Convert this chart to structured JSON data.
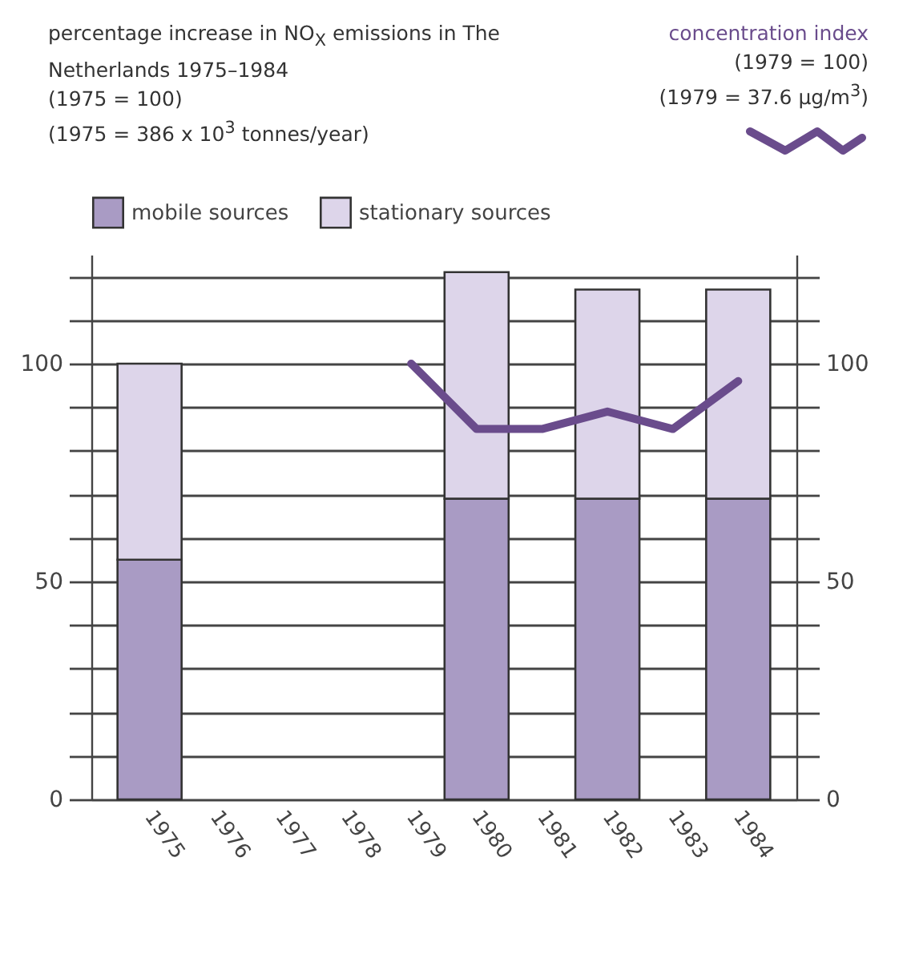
{
  "chart_data": {
    "type": "bar",
    "title": "percentage increase in NO$_{X}$ emissions in The Netherlands 1975–1984",
    "subtitle": "(1975 = 100)",
    "annotations": [
      "(1975 = 386 x 10$^{3}$ tonnes/year)",
      "(1979 = 100)",
      "(1979 = 37.6 µg/m$^{3}$)"
    ],
    "categories": [
      "1975",
      "1976",
      "1977",
      "1978",
      "1979",
      "1980",
      "1981",
      "1982",
      "1983",
      "1984"
    ],
    "stacked": true,
    "series": [
      {
        "name": "mobile sources",
        "color": "#a99bc4",
        "values": [
          55,
          null,
          null,
          null,
          null,
          69,
          null,
          69,
          null,
          69
        ]
      },
      {
        "name": "stationary sources",
        "color": "#ddd5ea",
        "values": [
          45,
          null,
          null,
          null,
          null,
          52,
          null,
          48,
          null,
          48
        ]
      },
      {
        "name": "concentration index",
        "type": "line",
        "axis": "y2",
        "color": "#6a4c8c",
        "values": [
          null,
          null,
          null,
          null,
          100,
          85,
          85,
          89,
          85,
          96
        ]
      }
    ],
    "ylim": [
      0,
      125
    ],
    "yticks": [
      0,
      {
        "value": 10,
        "label": null
      },
      {
        "value": 20,
        "label": null
      },
      {
        "value": 30,
        "label": null
      },
      {
        "value": 40,
        "label": null
      },
      50,
      {
        "value": 60,
        "label": null
      },
      {
        "value": 70,
        "label": null
      },
      {
        "value": 80,
        "label": null
      },
      {
        "value": 90,
        "label": null
      },
      100,
      {
        "value": 110,
        "label": null
      },
      {
        "value": 120,
        "label": null
      }
    ],
    "y2lim": [
      0,
      125
    ],
    "y2ticks": [
      0,
      {
        "value": 10,
        "label": null
      },
      {
        "value": 20,
        "label": null
      },
      {
        "value": 30,
        "label": null
      },
      {
        "value": 40,
        "label": null
      },
      50,
      {
        "value": 60,
        "label": null
      },
      {
        "value": 70,
        "label": null
      },
      {
        "value": 80,
        "label": null
      },
      {
        "value": 90,
        "label": null
      },
      100,
      {
        "value": 110,
        "label": null
      },
      {
        "value": 120,
        "label": null
      }
    ],
    "grid": "y",
    "legend": "top left",
    "line_style": "solid",
    "marker": "none"
  }
}
